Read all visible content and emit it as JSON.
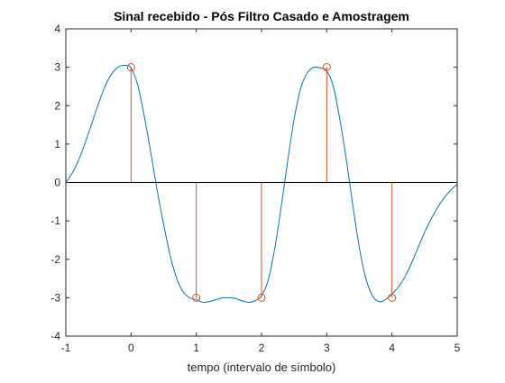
{
  "chart_data": {
    "type": "line",
    "title": "Sinal recebido - Pós Filtro Casado e Amostragem",
    "xlabel": "tempo (intervalo de símbolo)",
    "ylabel": "",
    "xlim": [
      -1,
      5
    ],
    "ylim": [
      -4,
      4
    ],
    "x_ticks": [
      -1,
      0,
      1,
      2,
      3,
      4,
      5
    ],
    "y_ticks": [
      -4,
      -3,
      -2,
      -1,
      0,
      1,
      2,
      3,
      4
    ],
    "grid": false,
    "box": true,
    "zero_line": true,
    "series": [
      {
        "kind": "line",
        "color": "#0072BD",
        "x": [
          -1.0,
          -0.9,
          -0.8,
          -0.7,
          -0.6,
          -0.5,
          -0.4,
          -0.3,
          -0.2,
          -0.1,
          0.0,
          0.1,
          0.2,
          0.3,
          0.4,
          0.5,
          0.6,
          0.7,
          0.8,
          0.9,
          1.0,
          1.1,
          1.2,
          1.3,
          1.4,
          1.5,
          1.6,
          1.7,
          1.8,
          1.9,
          2.0,
          2.1,
          2.2,
          2.3,
          2.4,
          2.5,
          2.6,
          2.7,
          2.8,
          2.9,
          3.0,
          3.1,
          3.2,
          3.3,
          3.4,
          3.5,
          3.6,
          3.7,
          3.8,
          3.9,
          4.0,
          4.1,
          4.2,
          4.3,
          4.4,
          4.5,
          4.6,
          4.7,
          4.8,
          4.9,
          5.0
        ],
        "y": [
          0.0,
          0.25,
          0.6,
          1.05,
          1.55,
          2.05,
          2.5,
          2.82,
          3.0,
          3.05,
          2.98,
          2.55,
          1.75,
          0.8,
          -0.2,
          -1.1,
          -1.9,
          -2.5,
          -2.85,
          -3.0,
          -3.05,
          -3.12,
          -3.1,
          -3.05,
          -3.0,
          -3.0,
          -3.02,
          -3.08,
          -3.12,
          -3.08,
          -2.95,
          -2.55,
          -1.75,
          -0.65,
          0.55,
          1.65,
          2.45,
          2.85,
          3.0,
          2.98,
          2.9,
          2.5,
          1.65,
          0.6,
          -0.6,
          -1.7,
          -2.5,
          -2.95,
          -3.1,
          -3.05,
          -2.9,
          -2.72,
          -2.45,
          -2.1,
          -1.7,
          -1.3,
          -0.95,
          -0.65,
          -0.4,
          -0.2,
          -0.05
        ]
      },
      {
        "kind": "stem",
        "color": "#D95319",
        "x": [
          0,
          1,
          2,
          3,
          4
        ],
        "y": [
          3,
          -3,
          -3,
          3,
          -3
        ]
      }
    ]
  }
}
